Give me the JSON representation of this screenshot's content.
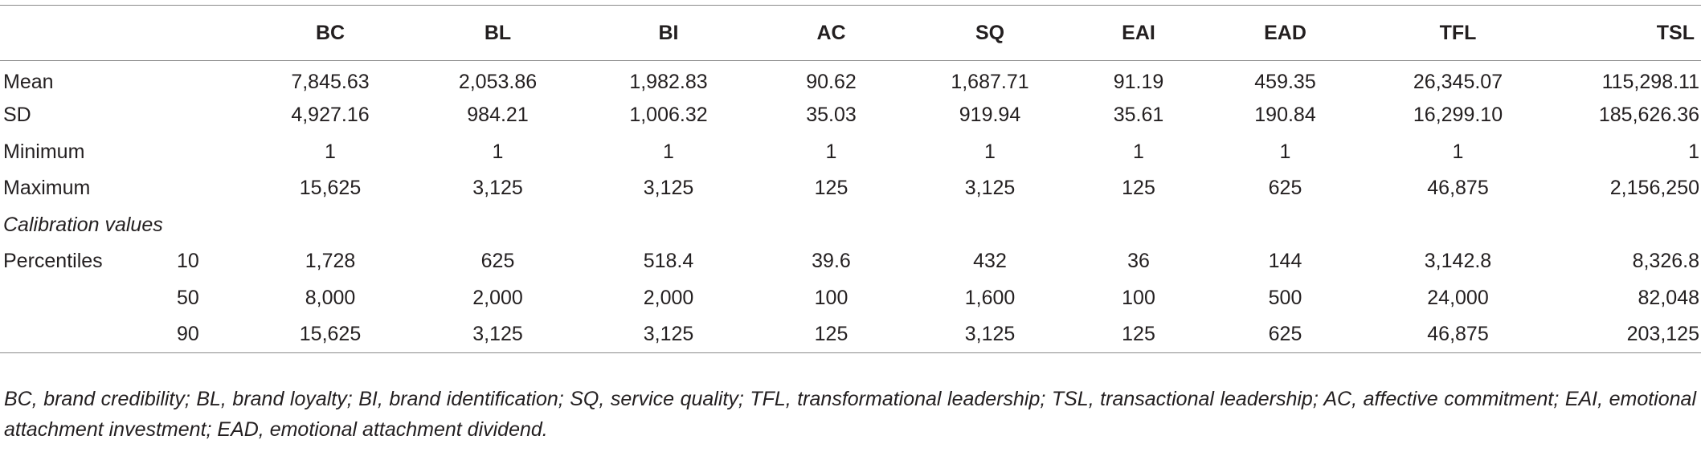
{
  "table": {
    "columns": [
      "BC",
      "BL",
      "BI",
      "AC",
      "SQ",
      "EAI",
      "EAD",
      "TFL",
      "TSL"
    ],
    "rows": [
      {
        "label": "Mean",
        "sub": "",
        "values": [
          "7,845.63",
          "2,053.86",
          "1,982.83",
          "90.62",
          "1,687.71",
          "91.19",
          "459.35",
          "26,345.07",
          "115,298.11"
        ]
      },
      {
        "label": "SD",
        "sub": "",
        "values": [
          "4,927.16",
          "984.21",
          "1,006.32",
          "35.03",
          "919.94",
          "35.61",
          "190.84",
          "16,299.10",
          "185,626.36"
        ]
      },
      {
        "label": "Minimum",
        "sub": "",
        "values": [
          "1",
          "1",
          "1",
          "1",
          "1",
          "1",
          "1",
          "1",
          "1"
        ]
      },
      {
        "label": "Maximum",
        "sub": "",
        "values": [
          "15,625",
          "3,125",
          "3,125",
          "125",
          "3,125",
          "125",
          "625",
          "46,875",
          "2,156,250"
        ]
      },
      {
        "label": "Calibration values",
        "sub": "",
        "values": [
          "",
          "",
          "",
          "",
          "",
          "",
          "",
          "",
          ""
        ]
      },
      {
        "label": "Percentiles",
        "sub": "10",
        "values": [
          "1,728",
          "625",
          "518.4",
          "39.6",
          "432",
          "36",
          "144",
          "3,142.8",
          "8,326.8"
        ]
      },
      {
        "label": "",
        "sub": "50",
        "values": [
          "8,000",
          "2,000",
          "2,000",
          "100",
          "1,600",
          "100",
          "500",
          "24,000",
          "82,048"
        ]
      },
      {
        "label": "",
        "sub": "90",
        "values": [
          "15,625",
          "3,125",
          "3,125",
          "125",
          "3,125",
          "125",
          "625",
          "46,875",
          "203,125"
        ]
      }
    ]
  },
  "footnote": "BC, brand credibility; BL, brand loyalty; BI, brand identification; SQ, service quality; TFL, transformational leadership; TSL, transactional leadership; AC, affective commitment; EAI, emotional attachment investment; EAD, emotional attachment dividend."
}
